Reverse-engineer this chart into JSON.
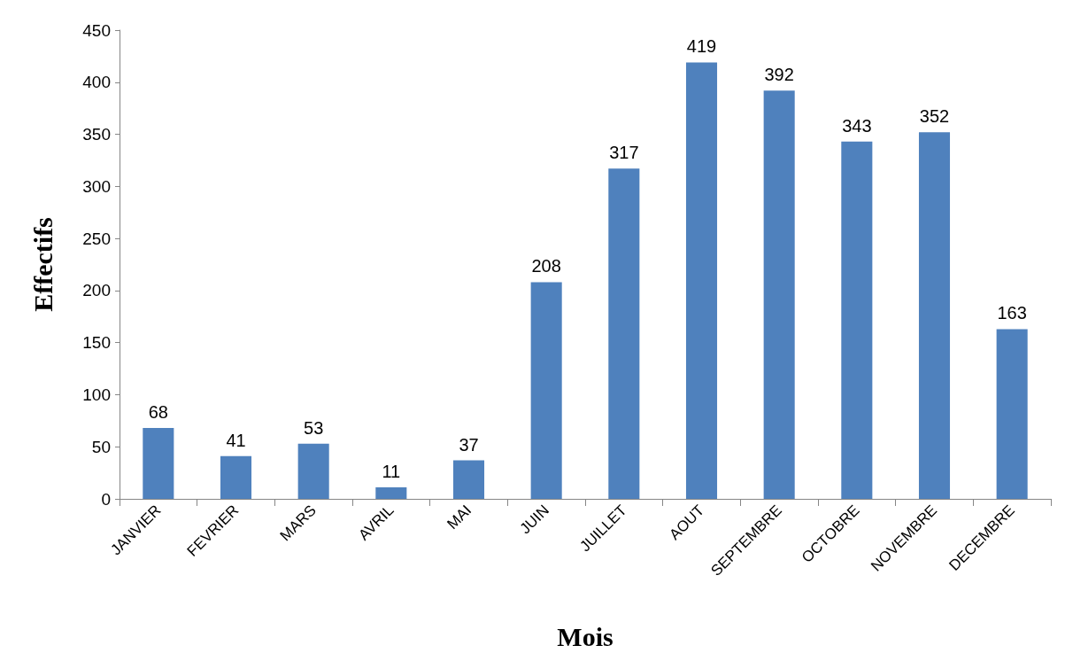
{
  "chart_data": {
    "type": "bar",
    "xlabel": "Mois",
    "ylabel": "Effectifs",
    "categories": [
      "JANVIER",
      "FEVRIER",
      "MARS",
      "AVRIL",
      "MAI",
      "JUIN",
      "JUILLET",
      "AOUT",
      "SEPTEMBRE",
      "OCTOBRE",
      "NOVEMBRE",
      "DECEMBRE"
    ],
    "values": [
      68,
      41,
      53,
      11,
      37,
      208,
      317,
      419,
      392,
      343,
      352,
      163
    ],
    "color": "#4f81bd",
    "ylim": [
      0,
      450
    ],
    "yticks": [
      0,
      50,
      100,
      150,
      200,
      250,
      300,
      350,
      400,
      450
    ],
    "grid": false,
    "data_labels": true
  }
}
